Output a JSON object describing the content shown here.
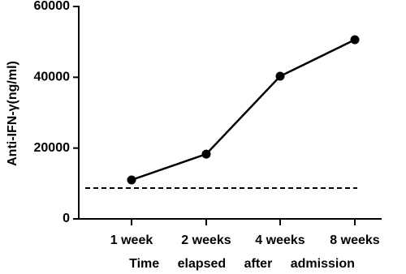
{
  "chart_data": {
    "type": "line",
    "y_label": "Anti-IFN-γ(ng/ml)",
    "x_label": "Time elapsed after admission",
    "categories": [
      "1 week",
      "2 weeks",
      "4 weeks",
      "8 weeks"
    ],
    "values": [
      11000,
      18300,
      40300,
      50600
    ],
    "color": "#000000",
    "reference_line": 8700,
    "ylim": [
      0,
      60000
    ],
    "yticks": [
      0,
      20000,
      40000,
      60000
    ]
  }
}
